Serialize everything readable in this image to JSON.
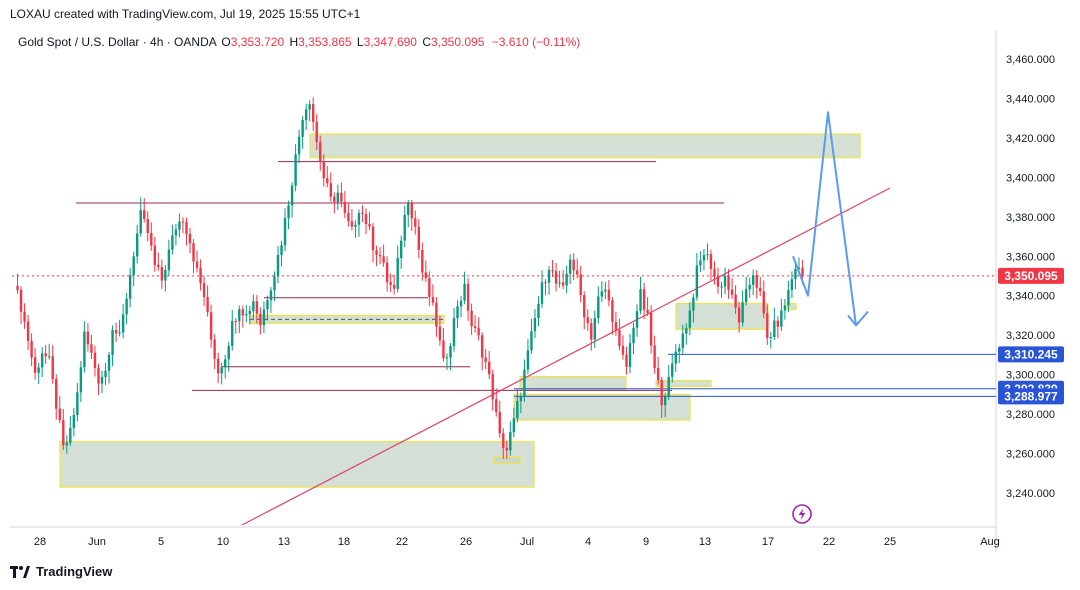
{
  "header": {
    "credit": "LOXAU created with TradingView.com, Jul 19, 2025 15:55 UTC+1"
  },
  "legend": {
    "symbol": "Gold Spot / U.S. Dollar · 4h · OANDA",
    "o_label": "O",
    "o_value": "3,353.720",
    "h_label": "H",
    "h_value": "3,353.865",
    "l_label": "L",
    "l_value": "3,347.690",
    "c_label": "C",
    "c_value": "3,350.095",
    "change": "−3.610 (−0.11%)"
  },
  "footer": {
    "brand": "TradingView"
  },
  "colors": {
    "up": "#089981",
    "down": "#f23645",
    "zone_fill": "#c5d6c8",
    "zone_border": "#f0e442",
    "line_red": "#9c2750",
    "trend": "#e0406a",
    "blue_line": "#2a54d6",
    "projection": "#5b9bf0",
    "price_tag": "#f23645",
    "level_tag": "#2a54d6"
  },
  "chart_data": {
    "type": "candlestick",
    "symbol": "Gold Spot / U.S. Dollar",
    "timeframe": "4h",
    "ylim": [
      3230,
      3470
    ],
    "y_ticks": [
      3240,
      3260,
      3280,
      3300,
      3320,
      3340,
      3360,
      3380,
      3400,
      3420,
      3440,
      3460
    ],
    "y_tick_labels": [
      "3,240.000",
      "3,260.000",
      "3,280.000",
      "3,300.000",
      "3,320.000",
      "3,340.000",
      "3,360.000",
      "3,380.000",
      "3,400.000",
      "3,420.000",
      "3,440.000",
      "3,460.000"
    ],
    "x_labels": [
      "28",
      "Jun",
      "5",
      "10",
      "13",
      "18",
      "22",
      "26",
      "Jul",
      "4",
      "9",
      "13",
      "17",
      "22",
      "25",
      "Aug"
    ],
    "current_price": {
      "label": "3,350.095",
      "value": 3350.095
    },
    "levels": [
      {
        "label": "3,310.245",
        "value": 3310.245
      },
      {
        "label": "3,292.839",
        "value": 3292.839
      },
      {
        "label": "3,288.977",
        "value": 3288.977
      }
    ],
    "close_path": [
      [
        0,
        3345
      ],
      [
        2,
        3335
      ],
      [
        4,
        3318
      ],
      [
        6,
        3300
      ],
      [
        8,
        3312
      ],
      [
        10,
        3306
      ],
      [
        12,
        3285
      ],
      [
        14,
        3262
      ],
      [
        16,
        3270
      ],
      [
        18,
        3290
      ],
      [
        20,
        3320
      ],
      [
        22,
        3310
      ],
      [
        24,
        3298
      ],
      [
        26,
        3302
      ],
      [
        28,
        3325
      ],
      [
        30,
        3318
      ],
      [
        32,
        3340
      ],
      [
        34,
        3362
      ],
      [
        36,
        3380
      ],
      [
        38,
        3372
      ],
      [
        40,
        3355
      ],
      [
        42,
        3348
      ],
      [
        44,
        3362
      ],
      [
        46,
        3375
      ],
      [
        48,
        3380
      ],
      [
        50,
        3368
      ],
      [
        52,
        3352
      ],
      [
        54,
        3340
      ],
      [
        56,
        3318
      ],
      [
        58,
        3302
      ],
      [
        60,
        3310
      ],
      [
        62,
        3325
      ],
      [
        64,
        3336
      ],
      [
        66,
        3330
      ],
      [
        68,
        3338
      ],
      [
        70,
        3326
      ],
      [
        72,
        3340
      ],
      [
        74,
        3352
      ],
      [
        76,
        3368
      ],
      [
        78,
        3388
      ],
      [
        80,
        3410
      ],
      [
        82,
        3432
      ],
      [
        84,
        3440
      ],
      [
        86,
        3418
      ],
      [
        88,
        3400
      ],
      [
        90,
        3388
      ],
      [
        92,
        3392
      ],
      [
        94,
        3380
      ],
      [
        96,
        3372
      ],
      [
        98,
        3385
      ],
      [
        100,
        3378
      ],
      [
        102,
        3366
      ],
      [
        104,
        3360
      ],
      [
        106,
        3348
      ],
      [
        108,
        3342
      ],
      [
        110,
        3370
      ],
      [
        112,
        3390
      ],
      [
        114,
        3375
      ],
      [
        116,
        3352
      ],
      [
        118,
        3340
      ],
      [
        120,
        3326
      ],
      [
        122,
        3305
      ],
      [
        124,
        3318
      ],
      [
        126,
        3336
      ],
      [
        128,
        3343
      ],
      [
        130,
        3325
      ],
      [
        132,
        3318
      ],
      [
        134,
        3306
      ],
      [
        136,
        3290
      ],
      [
        138,
        3268
      ],
      [
        140,
        3262
      ],
      [
        142,
        3276
      ],
      [
        144,
        3292
      ],
      [
        146,
        3310
      ],
      [
        148,
        3328
      ],
      [
        150,
        3344
      ],
      [
        152,
        3356
      ],
      [
        154,
        3346
      ],
      [
        156,
        3342
      ],
      [
        158,
        3360
      ],
      [
        160,
        3348
      ],
      [
        162,
        3332
      ],
      [
        164,
        3320
      ],
      [
        166,
        3338
      ],
      [
        168,
        3343
      ],
      [
        170,
        3330
      ],
      [
        172,
        3312
      ],
      [
        174,
        3304
      ],
      [
        176,
        3326
      ],
      [
        178,
        3340
      ],
      [
        180,
        3328
      ],
      [
        182,
        3302
      ],
      [
        184,
        3288
      ],
      [
        186,
        3296
      ],
      [
        188,
        3312
      ],
      [
        190,
        3320
      ],
      [
        192,
        3332
      ],
      [
        194,
        3352
      ],
      [
        196,
        3362
      ],
      [
        198,
        3356
      ],
      [
        200,
        3344
      ],
      [
        202,
        3350
      ],
      [
        204,
        3338
      ],
      [
        206,
        3328
      ],
      [
        208,
        3340
      ],
      [
        210,
        3352
      ],
      [
        212,
        3340
      ],
      [
        214,
        3318
      ],
      [
        216,
        3324
      ],
      [
        218,
        3330
      ],
      [
        220,
        3342
      ],
      [
        222,
        3355
      ],
      [
        224,
        3350
      ]
    ],
    "annotations": {
      "supply_zone": [
        3410,
        3422
      ],
      "demand_zones": [
        [
          3243,
          3266
        ],
        [
          3323,
          3336
        ],
        [
          3277,
          3290
        ],
        [
          3292,
          3299
        ]
      ],
      "resistance_line": 3387,
      "projection": [
        [
          3340,
          3433,
          3325
        ]
      ]
    }
  }
}
